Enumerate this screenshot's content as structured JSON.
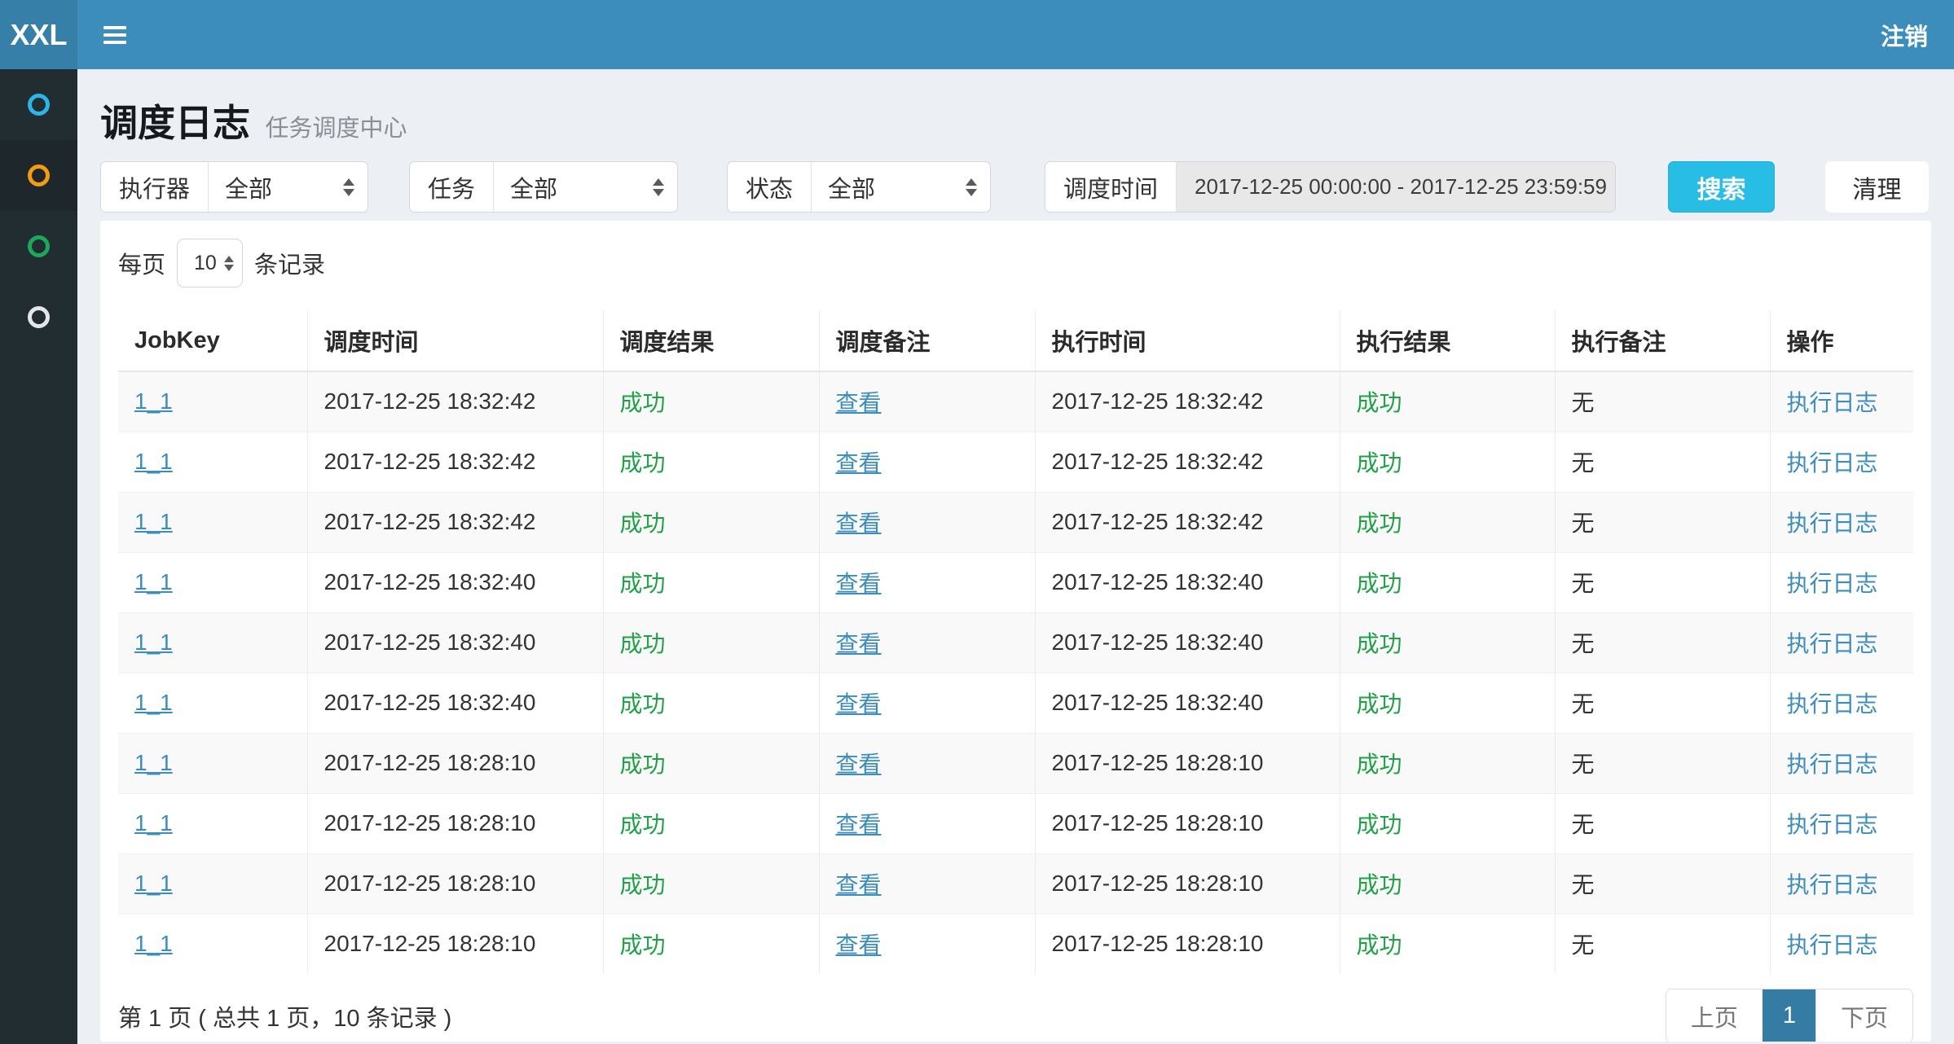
{
  "navbar": {
    "logo": "XXL",
    "logout_label": "注销"
  },
  "sidebar": {
    "items": [
      {
        "icon": "circle-outline-icon",
        "color": "#2cb5e8",
        "active": false
      },
      {
        "icon": "circle-outline-icon",
        "color": "#f39c12",
        "active": true
      },
      {
        "icon": "circle-outline-icon",
        "color": "#1da75a",
        "active": false
      },
      {
        "icon": "circle-outline-icon",
        "color": "#e4e6e9",
        "active": false
      }
    ]
  },
  "page": {
    "title": "调度日志",
    "subtitle": "任务调度中心"
  },
  "filters": {
    "executor": {
      "label": "执行器",
      "value": "全部"
    },
    "job": {
      "label": "任务",
      "value": "全部"
    },
    "status": {
      "label": "状态",
      "value": "全部"
    },
    "trigger_time": {
      "label": "调度时间",
      "value": "2017-12-25 00:00:00 - 2017-12-25 23:59:59"
    },
    "search_label": "搜索",
    "clean_label": "清理"
  },
  "page_size": {
    "prefix": "每页",
    "value": "10",
    "suffix": "条记录"
  },
  "table": {
    "columns": [
      "JobKey",
      "调度时间",
      "调度结果",
      "调度备注",
      "执行时间",
      "执行结果",
      "执行备注",
      "操作"
    ],
    "rows": [
      {
        "jobkey": "1_1",
        "trigger_time": "2017-12-25 18:32:42",
        "trigger_result": "成功",
        "trigger_msg": "查看",
        "handle_time": "2017-12-25 18:32:42",
        "handle_result": "成功",
        "handle_msg": "无",
        "action": "执行日志"
      },
      {
        "jobkey": "1_1",
        "trigger_time": "2017-12-25 18:32:42",
        "trigger_result": "成功",
        "trigger_msg": "查看",
        "handle_time": "2017-12-25 18:32:42",
        "handle_result": "成功",
        "handle_msg": "无",
        "action": "执行日志"
      },
      {
        "jobkey": "1_1",
        "trigger_time": "2017-12-25 18:32:42",
        "trigger_result": "成功",
        "trigger_msg": "查看",
        "handle_time": "2017-12-25 18:32:42",
        "handle_result": "成功",
        "handle_msg": "无",
        "action": "执行日志"
      },
      {
        "jobkey": "1_1",
        "trigger_time": "2017-12-25 18:32:40",
        "trigger_result": "成功",
        "trigger_msg": "查看",
        "handle_time": "2017-12-25 18:32:40",
        "handle_result": "成功",
        "handle_msg": "无",
        "action": "执行日志"
      },
      {
        "jobkey": "1_1",
        "trigger_time": "2017-12-25 18:32:40",
        "trigger_result": "成功",
        "trigger_msg": "查看",
        "handle_time": "2017-12-25 18:32:40",
        "handle_result": "成功",
        "handle_msg": "无",
        "action": "执行日志"
      },
      {
        "jobkey": "1_1",
        "trigger_time": "2017-12-25 18:32:40",
        "trigger_result": "成功",
        "trigger_msg": "查看",
        "handle_time": "2017-12-25 18:32:40",
        "handle_result": "成功",
        "handle_msg": "无",
        "action": "执行日志"
      },
      {
        "jobkey": "1_1",
        "trigger_time": "2017-12-25 18:28:10",
        "trigger_result": "成功",
        "trigger_msg": "查看",
        "handle_time": "2017-12-25 18:28:10",
        "handle_result": "成功",
        "handle_msg": "无",
        "action": "执行日志"
      },
      {
        "jobkey": "1_1",
        "trigger_time": "2017-12-25 18:28:10",
        "trigger_result": "成功",
        "trigger_msg": "查看",
        "handle_time": "2017-12-25 18:28:10",
        "handle_result": "成功",
        "handle_msg": "无",
        "action": "执行日志"
      },
      {
        "jobkey": "1_1",
        "trigger_time": "2017-12-25 18:28:10",
        "trigger_result": "成功",
        "trigger_msg": "查看",
        "handle_time": "2017-12-25 18:28:10",
        "handle_result": "成功",
        "handle_msg": "无",
        "action": "执行日志"
      },
      {
        "jobkey": "1_1",
        "trigger_time": "2017-12-25 18:28:10",
        "trigger_result": "成功",
        "trigger_msg": "查看",
        "handle_time": "2017-12-25 18:28:10",
        "handle_result": "成功",
        "handle_msg": "无",
        "action": "执行日志"
      }
    ]
  },
  "pagination": {
    "summary": "第 1 页 ( 总共 1 页，10 条记录 )",
    "prev_label": "上页",
    "current": "1",
    "next_label": "下页"
  },
  "colors": {
    "navbar": "#3c8dbc",
    "logo_bg": "#367fa9",
    "sidebar_bg": "#222d32",
    "sidebar_active_bg": "#1e282c",
    "body_bg": "#ecf0f5",
    "link": "#3c8dbc",
    "success_text": "#1fa145",
    "search_button": "#27bde5",
    "pagination_active": "#357ca5"
  }
}
